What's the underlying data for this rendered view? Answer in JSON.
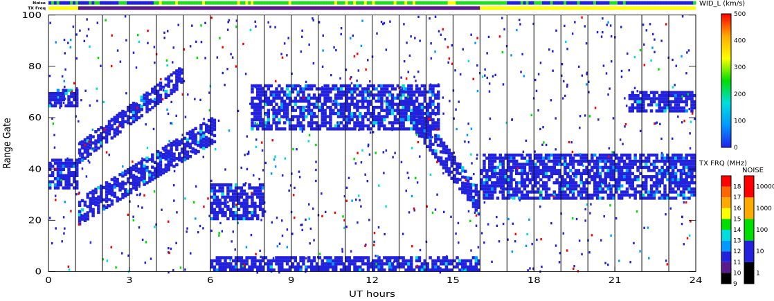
{
  "chart_data": {
    "type": "heatmap",
    "xlabel": "UT hours",
    "ylabel": "Range Gate",
    "xlim": [
      0,
      24
    ],
    "ylim": [
      0,
      100
    ],
    "x_ticks": [
      0,
      3,
      6,
      9,
      12,
      15,
      18,
      21,
      24
    ],
    "y_ticks": [
      0,
      20,
      40,
      60,
      80,
      100
    ],
    "hour_lines": [
      1,
      2,
      3,
      4,
      5,
      6,
      7,
      8,
      9,
      10,
      11,
      12,
      13,
      14,
      15,
      16,
      17,
      18,
      19,
      20,
      21,
      22,
      23
    ],
    "strips": {
      "noise_label": "Noise",
      "txfreq_label": "TX Freq",
      "txfreq_segments": [
        {
          "start": 0,
          "end": 1.1,
          "color": "#ffff00"
        },
        {
          "start": 1.1,
          "end": 16.0,
          "color": "#5a1a8c"
        },
        {
          "start": 16.0,
          "end": 24,
          "color": "#ffff00"
        }
      ],
      "noise_colors": [
        "#2222dd",
        "#22dd22",
        "#ffff00"
      ]
    },
    "scatter_bands": [
      {
        "name": "band-low-1",
        "x0": 0.0,
        "x1": 1.1,
        "y0": 32,
        "y1": 44,
        "color": "#2222dd"
      },
      {
        "name": "band-climb",
        "x0": 1.1,
        "x1": 6.2,
        "y0_start": 18,
        "y0_end": 50,
        "width": 10,
        "color": "#2222dd"
      },
      {
        "name": "band-climb-upper",
        "x0": 1.1,
        "x1": 5.0,
        "y0_start": 42,
        "y0_end": 72,
        "width": 8,
        "color": "#2222dd"
      },
      {
        "name": "band-patch-6h",
        "x0": 6.0,
        "x1": 8.0,
        "y0": 20,
        "y1": 34,
        "color": "#2222dd"
      },
      {
        "name": "band-arc",
        "x0": 7.5,
        "x1": 14.5,
        "y0": 55,
        "y1": 72,
        "color": "#2222dd"
      },
      {
        "name": "band-desc",
        "x0": 13.5,
        "x1": 16.0,
        "y0_start": 55,
        "y0_end": 22,
        "width": 10,
        "color": "#2222dd"
      },
      {
        "name": "band-main-late",
        "x0": 16.0,
        "x1": 24.0,
        "y0": 28,
        "y1": 46,
        "color": "#2222dd"
      },
      {
        "name": "band-upper-late",
        "x0": 21.5,
        "x1": 24.0,
        "y0": 62,
        "y1": 70,
        "color": "#2222dd"
      },
      {
        "name": "band-top-left",
        "x0": 0.0,
        "x1": 1.1,
        "y0": 64,
        "y1": 71,
        "color": "#2222dd"
      },
      {
        "name": "band-ground",
        "x0": 6.0,
        "x1": 16.0,
        "y0": 0,
        "y1": 5,
        "color": "#2222dd"
      }
    ],
    "colorbars": [
      {
        "name": "wid",
        "title": "WID_L (km/s)",
        "ticks": [
          0,
          100,
          200,
          300,
          400,
          500
        ],
        "stops": [
          "#2222ee",
          "#0099ff",
          "#00dddd",
          "#00dd00",
          "#ffff00",
          "#ffaa00",
          "#ff0000"
        ]
      },
      {
        "name": "txfreq",
        "title": "TX FRQ (MHz)",
        "ticks": [
          9,
          10,
          11,
          12,
          13,
          14,
          15,
          16,
          17,
          18
        ],
        "colors": [
          "#000000",
          "#5a1a8c",
          "#2222dd",
          "#0099ff",
          "#00dddd",
          "#00dd00",
          "#ffff00",
          "#ffaa00",
          "#ff6600",
          "#ff0000"
        ]
      },
      {
        "name": "noise",
        "title": "NOISE",
        "ticks": [
          "1",
          "10",
          "100",
          "1000",
          "10000"
        ],
        "colors": [
          "#000000",
          "#2222dd",
          "#00dd00",
          "#ffaa00",
          "#ff0000"
        ]
      }
    ]
  }
}
